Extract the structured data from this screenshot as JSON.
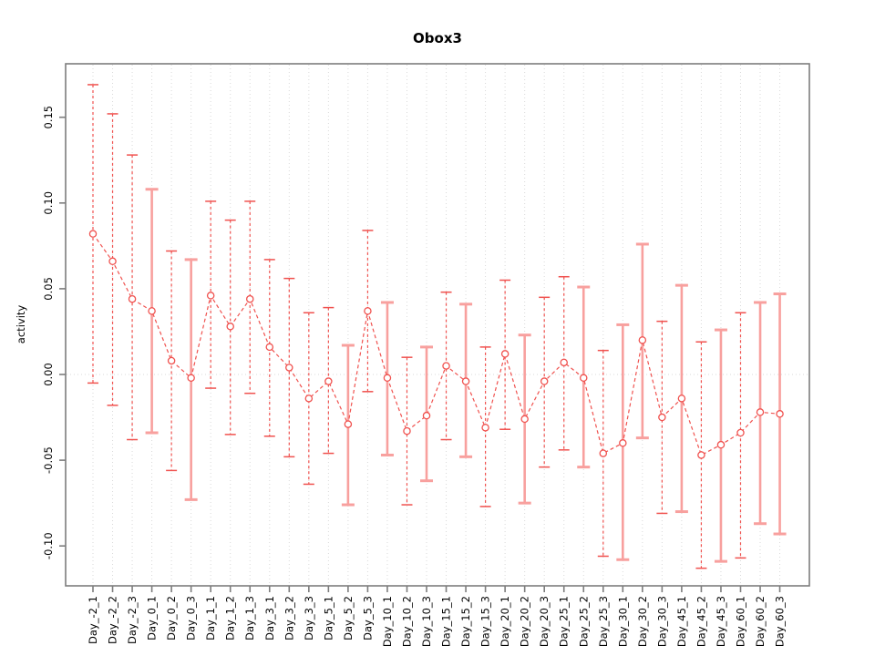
{
  "chart_data": {
    "type": "line",
    "title": "Obox3",
    "xlabel": "",
    "ylabel": "activity",
    "ylim": [
      -0.123,
      0.182
    ],
    "yticks": [
      0.15,
      0.1,
      0.05,
      0.0,
      -0.05,
      -0.1
    ],
    "ytick_labels": [
      "0.15",
      "0.10",
      "0.05",
      "0.00",
      "-0.05",
      "-0.10"
    ],
    "grid": "vertical dotted gridline at every category plus dotted horizontal zero line",
    "legend_position": "none",
    "point_marker": "open-circle",
    "line_style": "dashed",
    "categories": [
      "Day_-2_1",
      "Day_-2_2",
      "Day_-2_3",
      "Day_0_1",
      "Day_0_2",
      "Day_0_3",
      "Day_1_1",
      "Day_1_2",
      "Day_1_3",
      "Day_3_1",
      "Day_3_2",
      "Day_3_3",
      "Day_5_1",
      "Day_5_2",
      "Day_5_3",
      "Day_10_1",
      "Day_10_2",
      "Day_10_3",
      "Day_15_1",
      "Day_15_2",
      "Day_15_3",
      "Day_20_1",
      "Day_20_2",
      "Day_20_3",
      "Day_25_1",
      "Day_25_2",
      "Day_25_3",
      "Day_30_1",
      "Day_30_2",
      "Day_30_3",
      "Day_45_1",
      "Day_45_2",
      "Day_45_3",
      "Day_60_1",
      "Day_60_2",
      "Day_60_3"
    ],
    "series": [
      {
        "name": "activity",
        "values": [
          0.082,
          0.066,
          0.044,
          0.037,
          0.008,
          -0.002,
          0.046,
          0.028,
          0.044,
          0.016,
          0.004,
          -0.014,
          -0.004,
          -0.029,
          0.037,
          -0.002,
          -0.033,
          -0.024,
          0.005,
          -0.004,
          -0.031,
          0.012,
          -0.026,
          -0.004,
          0.007,
          -0.002,
          -0.046,
          -0.04,
          0.02,
          -0.025,
          -0.014,
          -0.047,
          -0.041,
          -0.034,
          -0.022,
          -0.023
        ],
        "error_upper": [
          0.169,
          0.152,
          0.128,
          0.108,
          0.072,
          0.067,
          0.101,
          0.09,
          0.101,
          0.067,
          0.056,
          0.036,
          0.039,
          0.017,
          0.084,
          0.042,
          0.01,
          0.016,
          0.048,
          0.041,
          0.016,
          0.055,
          0.023,
          0.045,
          0.057,
          0.051,
          0.014,
          0.029,
          0.076,
          0.031,
          0.052,
          0.019,
          0.026,
          0.036,
          0.042,
          0.047
        ],
        "error_lower": [
          -0.005,
          -0.018,
          -0.038,
          -0.034,
          -0.056,
          -0.073,
          -0.008,
          -0.035,
          -0.011,
          -0.036,
          -0.048,
          -0.064,
          -0.046,
          -0.076,
          -0.01,
          -0.047,
          -0.076,
          -0.062,
          -0.038,
          -0.048,
          -0.077,
          -0.032,
          -0.075,
          -0.054,
          -0.044,
          -0.054,
          -0.106,
          -0.108,
          -0.037,
          -0.081,
          -0.08,
          -0.113,
          -0.109,
          -0.107,
          -0.087,
          -0.093
        ],
        "bar_styles": [
          "red",
          "red",
          "red",
          "pink",
          "red",
          "pink",
          "red",
          "red",
          "red",
          "red",
          "red",
          "red",
          "red",
          "pink",
          "red",
          "pink",
          "red",
          "pink",
          "red",
          "pink",
          "red",
          "red",
          "pink",
          "red",
          "red",
          "pink",
          "red",
          "pink",
          "pink",
          "red",
          "pink",
          "red",
          "pink",
          "red",
          "pink",
          "pink"
        ]
      }
    ]
  },
  "colors": {
    "series_red": "#f0524f",
    "bar_pink": "#f8a09e",
    "marker_fill": "#ffffff",
    "gridline": "#d9d9d9",
    "axis_frame": "#7d7d7d",
    "text": "#000000",
    "background": "#ffffff"
  }
}
